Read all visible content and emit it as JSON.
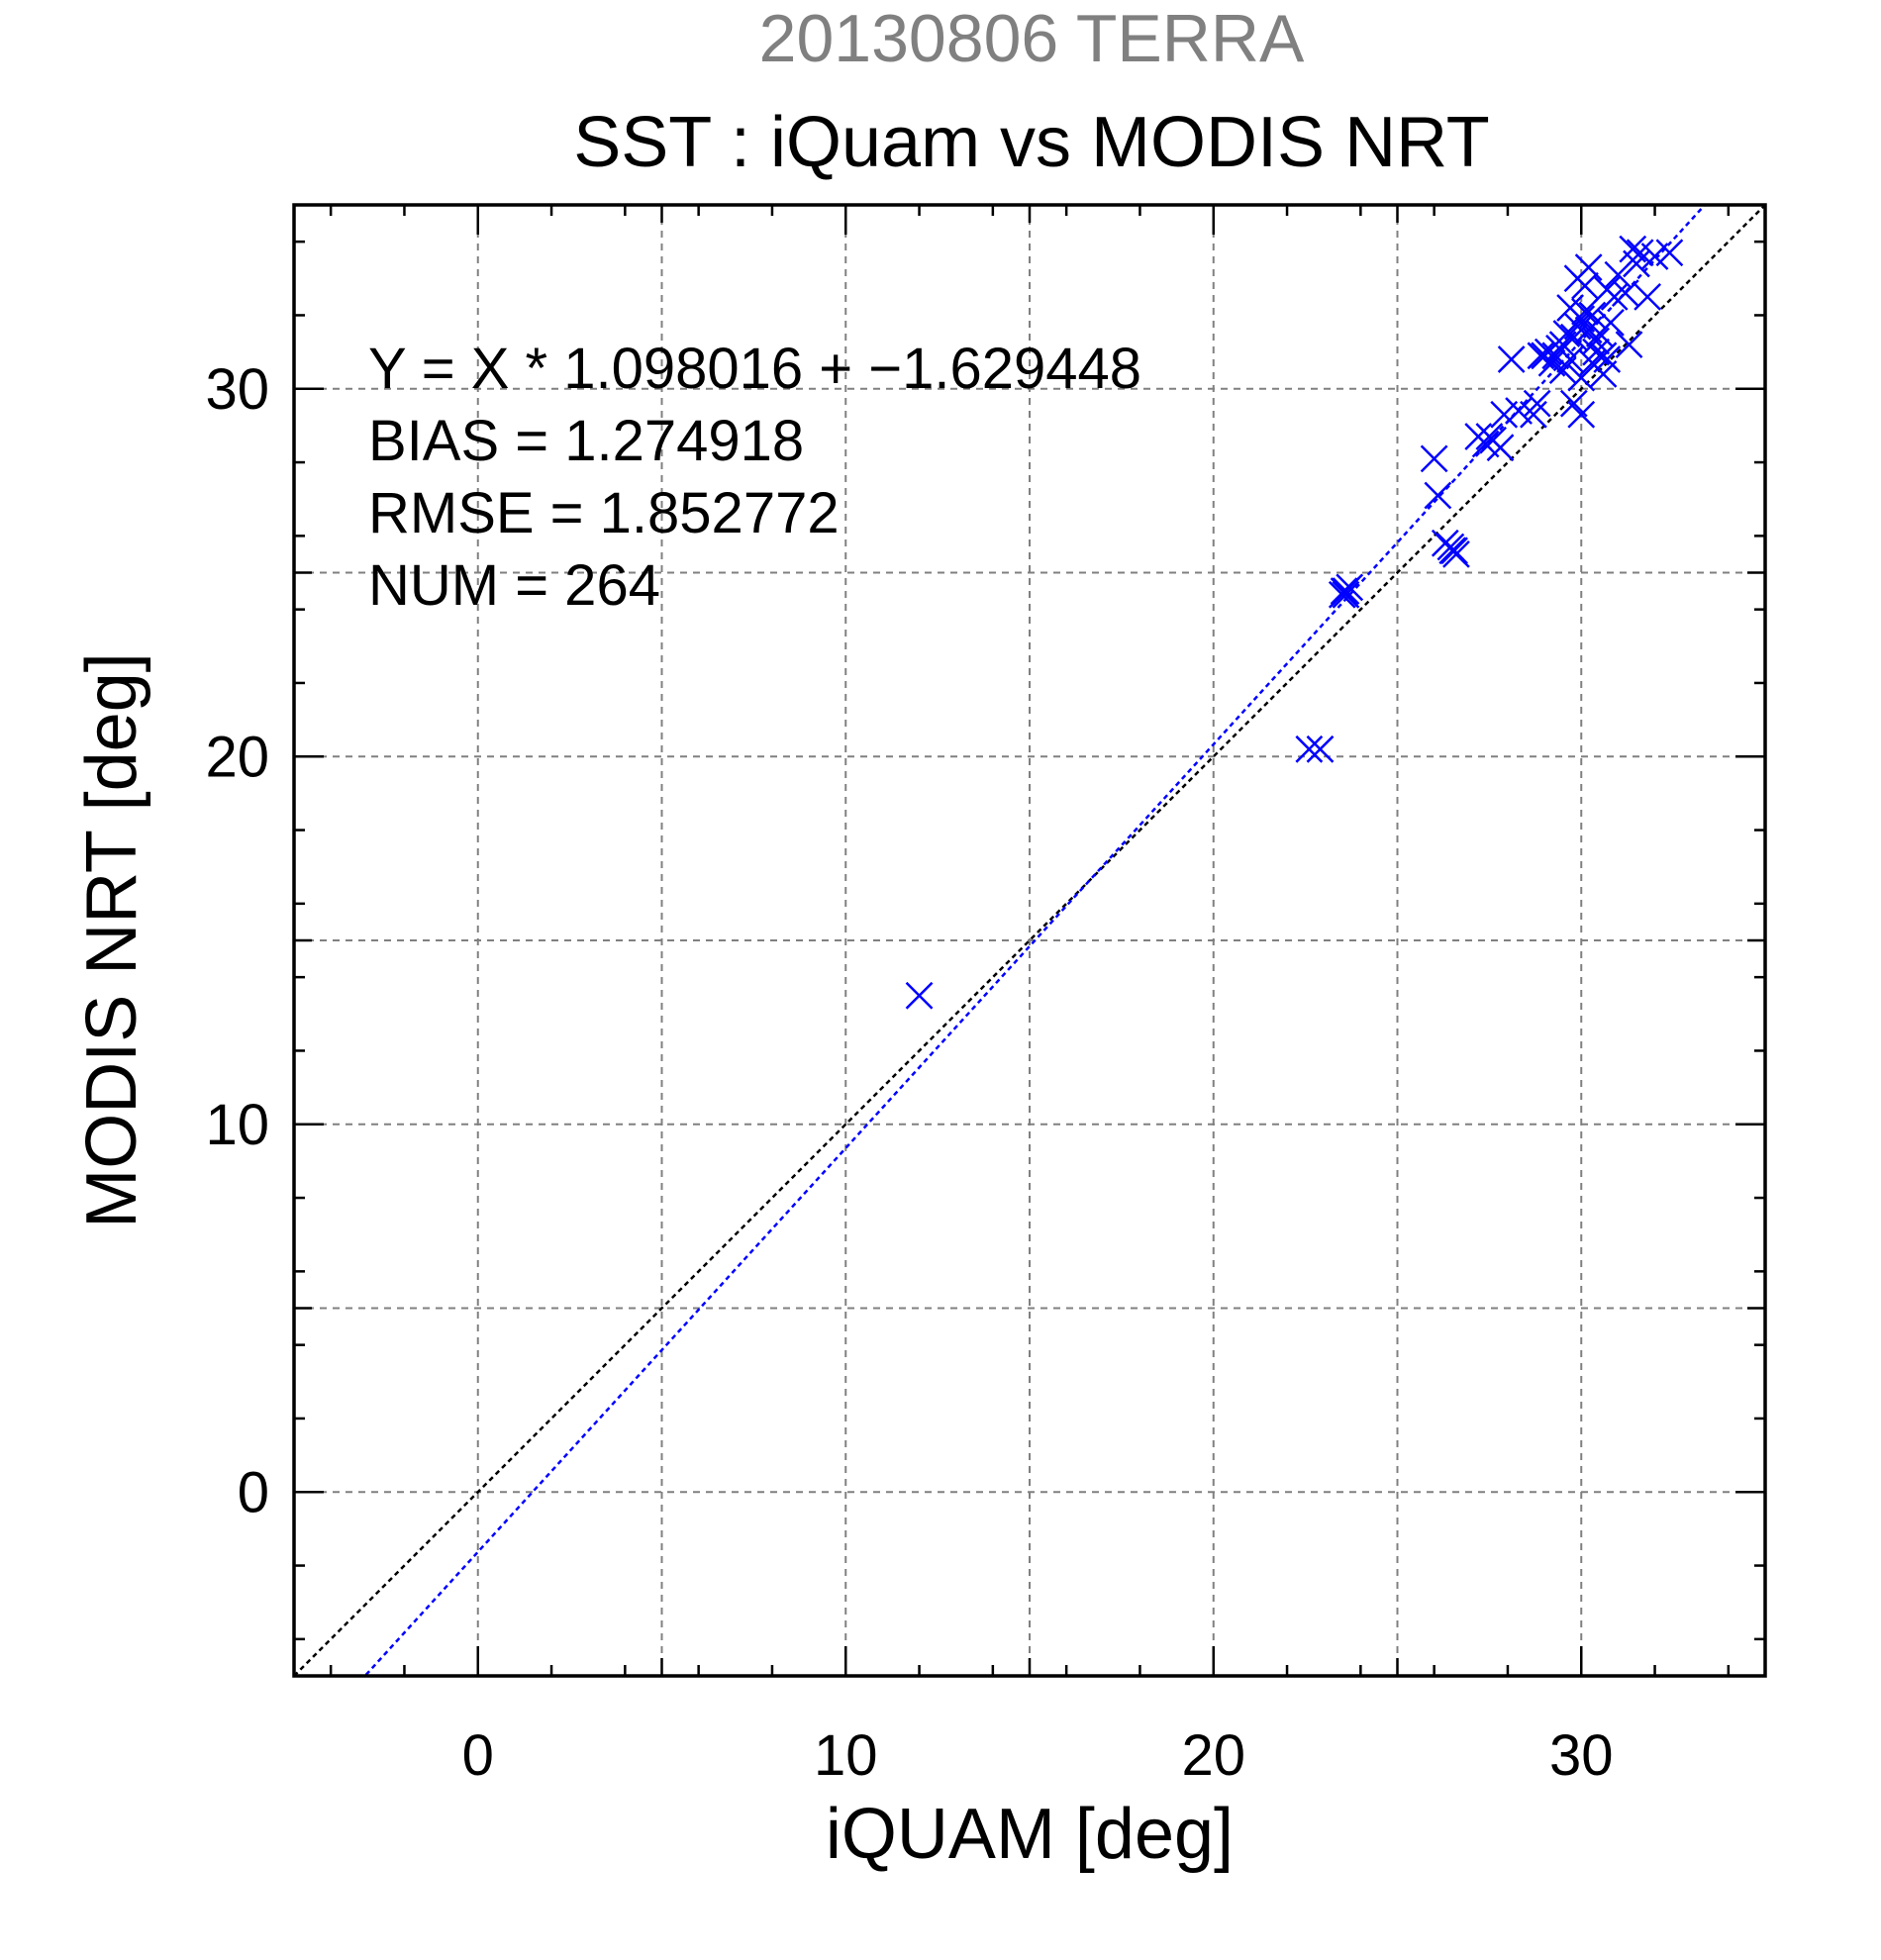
{
  "chart_data": {
    "type": "scatter",
    "supertitle": "20130806 TERRA",
    "title": "SST : iQuam vs MODIS NRT",
    "xlabel": "iQUAM [deg]",
    "ylabel": "MODIS NRT [deg]",
    "xlim": [
      -5,
      35
    ],
    "ylim": [
      -5,
      35
    ],
    "xticks": [
      0,
      10,
      20,
      30
    ],
    "yticks": [
      0,
      10,
      20,
      30
    ],
    "grid": true,
    "stats": [
      "Y = X * 1.098016 + −1.629448",
      "BIAS = 1.274918",
      "RMSE = 1.852772",
      "NUM = 264"
    ],
    "regression": {
      "slope": 1.098016,
      "intercept": -1.629448
    },
    "colors": {
      "points": "#0000ff",
      "fit_line": "#0000ff",
      "identity_line": "#000000",
      "grid": "#808080",
      "supertitle": "#808080"
    },
    "series": [
      {
        "marker": "x",
        "x": [
          12.0,
          22.6,
          22.9,
          23.5,
          23.6,
          23.7,
          23.6,
          23.55,
          26.0,
          26.1,
          26.3,
          26.5,
          26.6,
          26.45,
          26.55,
          27.2,
          27.4,
          27.5,
          27.6,
          27.8,
          27.9,
          28.1,
          28.3,
          28.7,
          28.8,
          28.9,
          29.0,
          29.1,
          29.2,
          29.3,
          29.4,
          29.5,
          29.6,
          29.7,
          29.8,
          29.9,
          30.0,
          30.1,
          30.2,
          30.3,
          30.4,
          30.5,
          30.6,
          30.7,
          30.8,
          30.9,
          31.0,
          31.2,
          31.4,
          31.6,
          31.8,
          32.0,
          32.4,
          30.0,
          29.8,
          29.5,
          30.3,
          30.6,
          30.1,
          29.9,
          30.2,
          30.4,
          29.7,
          30.0,
          31.3,
          30.7,
          31.5
        ],
        "y": [
          13.5,
          20.2,
          20.2,
          24.4,
          24.5,
          24.6,
          24.4,
          24.5,
          28.1,
          27.1,
          25.8,
          25.6,
          25.5,
          25.7,
          25.6,
          28.7,
          28.5,
          28.7,
          28.6,
          28.4,
          29.3,
          30.8,
          29.4,
          29.3,
          29.6,
          30.9,
          30.9,
          31.0,
          30.7,
          30.9,
          31.1,
          31.2,
          31.5,
          30.8,
          31.4,
          31.7,
          31.9,
          32.1,
          31.6,
          32.0,
          31.3,
          31.5,
          30.9,
          32.7,
          31.8,
          32.5,
          33.1,
          32.6,
          33.8,
          33.7,
          32.5,
          33.6,
          33.7,
          29.3,
          29.6,
          30.5,
          30.7,
          30.4,
          32.8,
          33.0,
          33.3,
          31.0,
          32.2,
          30.3,
          31.2,
          30.8,
          33.4
        ]
      }
    ]
  }
}
